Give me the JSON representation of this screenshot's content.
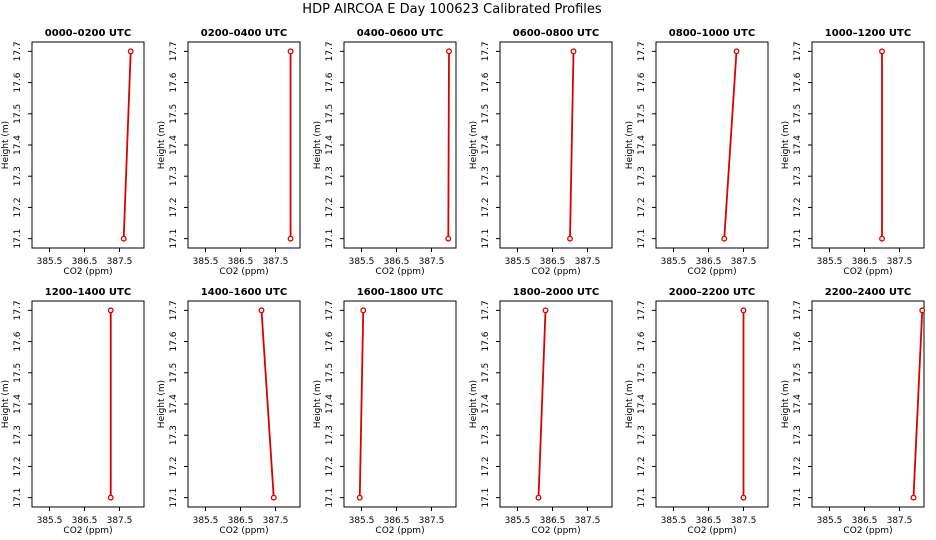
{
  "figure": {
    "title": "HDP AIRCOA E  Day 100623  Calibrated Profiles"
  },
  "colors": {
    "series": "#dd0000",
    "axes": "#000000",
    "background": "#ffffff"
  },
  "chart_data": [
    {
      "type": "line",
      "title": "0000–0200 UTC",
      "xlabel": "CO2 (ppm)",
      "ylabel": "Height (m)",
      "xlim": [
        385.0,
        388.2
      ],
      "ylim": [
        17.07,
        17.73
      ],
      "xticks": [
        385.5,
        386.5,
        387.5
      ],
      "xticklabels": [
        "385.5",
        "386.5",
        "387.5"
      ],
      "yticks": [
        17.1,
        17.2,
        17.3,
        17.4,
        17.5,
        17.6,
        17.7
      ],
      "yticklabels": [
        "17.1",
        "17.2",
        "17.3",
        "17.4",
        "17.5",
        "17.6",
        "17.7"
      ],
      "x": [
        387.62,
        387.82
      ],
      "y": [
        17.1,
        17.7
      ]
    },
    {
      "type": "line",
      "title": "0200–0400 UTC",
      "xlabel": "CO2 (ppm)",
      "ylabel": "Height (m)",
      "xlim": [
        385.0,
        388.2
      ],
      "ylim": [
        17.07,
        17.73
      ],
      "xticks": [
        385.5,
        386.5,
        387.5
      ],
      "xticklabels": [
        "385.5",
        "386.5",
        "387.5"
      ],
      "yticks": [
        17.1,
        17.2,
        17.3,
        17.4,
        17.5,
        17.6,
        17.7
      ],
      "yticklabels": [
        "17.1",
        "17.2",
        "17.3",
        "17.4",
        "17.5",
        "17.6",
        "17.7"
      ],
      "x": [
        387.93,
        387.93
      ],
      "y": [
        17.1,
        17.7
      ]
    },
    {
      "type": "line",
      "title": "0400–0600 UTC",
      "xlabel": "CO2 (ppm)",
      "ylabel": "Height (m)",
      "xlim": [
        385.0,
        388.2
      ],
      "ylim": [
        17.07,
        17.73
      ],
      "xticks": [
        385.5,
        386.5,
        387.5
      ],
      "xticklabels": [
        "385.5",
        "386.5",
        "387.5"
      ],
      "yticks": [
        17.1,
        17.2,
        17.3,
        17.4,
        17.5,
        17.6,
        17.7
      ],
      "yticklabels": [
        "17.1",
        "17.2",
        "17.3",
        "17.4",
        "17.5",
        "17.6",
        "17.7"
      ],
      "x": [
        387.98,
        388.0
      ],
      "y": [
        17.1,
        17.7
      ]
    },
    {
      "type": "line",
      "title": "0600–0800 UTC",
      "xlabel": "CO2 (ppm)",
      "ylabel": "Height (m)",
      "xlim": [
        385.0,
        388.2
      ],
      "ylim": [
        17.07,
        17.73
      ],
      "xticks": [
        385.5,
        386.5,
        387.5
      ],
      "xticklabels": [
        "385.5",
        "386.5",
        "387.5"
      ],
      "yticks": [
        17.1,
        17.2,
        17.3,
        17.4,
        17.5,
        17.6,
        17.7
      ],
      "yticklabels": [
        "17.1",
        "17.2",
        "17.3",
        "17.4",
        "17.5",
        "17.6",
        "17.7"
      ],
      "x": [
        387.0,
        387.1
      ],
      "y": [
        17.1,
        17.7
      ]
    },
    {
      "type": "line",
      "title": "0800–1000 UTC",
      "xlabel": "CO2 (ppm)",
      "ylabel": "Height (m)",
      "xlim": [
        385.0,
        388.2
      ],
      "ylim": [
        17.07,
        17.73
      ],
      "xticks": [
        385.5,
        386.5,
        387.5
      ],
      "xticklabels": [
        "385.5",
        "386.5",
        "387.5"
      ],
      "yticks": [
        17.1,
        17.2,
        17.3,
        17.4,
        17.5,
        17.6,
        17.7
      ],
      "yticklabels": [
        "17.1",
        "17.2",
        "17.3",
        "17.4",
        "17.5",
        "17.6",
        "17.7"
      ],
      "x": [
        386.95,
        387.3
      ],
      "y": [
        17.1,
        17.7
      ]
    },
    {
      "type": "line",
      "title": "1000–1200 UTC",
      "xlabel": "CO2 (ppm)",
      "ylabel": "Height (m)",
      "xlim": [
        385.0,
        388.2
      ],
      "ylim": [
        17.07,
        17.73
      ],
      "xticks": [
        385.5,
        386.5,
        387.5
      ],
      "xticklabels": [
        "385.5",
        "386.5",
        "387.5"
      ],
      "yticks": [
        17.1,
        17.2,
        17.3,
        17.4,
        17.5,
        17.6,
        17.7
      ],
      "yticklabels": [
        "17.1",
        "17.2",
        "17.3",
        "17.4",
        "17.5",
        "17.6",
        "17.7"
      ],
      "x": [
        387.0,
        387.0
      ],
      "y": [
        17.1,
        17.7
      ]
    },
    {
      "type": "line",
      "title": "1200–1400 UTC",
      "xlabel": "CO2 (ppm)",
      "ylabel": "Height (m)",
      "xlim": [
        385.0,
        388.2
      ],
      "ylim": [
        17.07,
        17.73
      ],
      "xticks": [
        385.5,
        386.5,
        387.5
      ],
      "xticklabels": [
        "385.5",
        "386.5",
        "387.5"
      ],
      "yticks": [
        17.1,
        17.2,
        17.3,
        17.4,
        17.5,
        17.6,
        17.7
      ],
      "yticklabels": [
        "17.1",
        "17.2",
        "17.3",
        "17.4",
        "17.5",
        "17.6",
        "17.7"
      ],
      "x": [
        387.25,
        387.25
      ],
      "y": [
        17.1,
        17.7
      ]
    },
    {
      "type": "line",
      "title": "1400–1600 UTC",
      "xlabel": "CO2 (ppm)",
      "ylabel": "Height (m)",
      "xlim": [
        385.0,
        388.2
      ],
      "ylim": [
        17.07,
        17.73
      ],
      "xticks": [
        385.5,
        386.5,
        387.5
      ],
      "xticklabels": [
        "385.5",
        "386.5",
        "387.5"
      ],
      "yticks": [
        17.1,
        17.2,
        17.3,
        17.4,
        17.5,
        17.6,
        17.7
      ],
      "yticklabels": [
        "17.1",
        "17.2",
        "17.3",
        "17.4",
        "17.5",
        "17.6",
        "17.7"
      ],
      "x": [
        387.45,
        387.1
      ],
      "y": [
        17.1,
        17.7
      ]
    },
    {
      "type": "line",
      "title": "1600–1800 UTC",
      "xlabel": "CO2 (ppm)",
      "ylabel": "Height (m)",
      "xlim": [
        385.0,
        388.2
      ],
      "ylim": [
        17.07,
        17.73
      ],
      "xticks": [
        385.5,
        386.5,
        387.5
      ],
      "xticklabels": [
        "385.5",
        "386.5",
        "387.5"
      ],
      "yticks": [
        17.1,
        17.2,
        17.3,
        17.4,
        17.5,
        17.6,
        17.7
      ],
      "yticklabels": [
        "17.1",
        "17.2",
        "17.3",
        "17.4",
        "17.5",
        "17.6",
        "17.7"
      ],
      "x": [
        385.45,
        385.55
      ],
      "y": [
        17.1,
        17.7
      ]
    },
    {
      "type": "line",
      "title": "1800–2000 UTC",
      "xlabel": "CO2 (ppm)",
      "ylabel": "Height (m)",
      "xlim": [
        385.0,
        388.2
      ],
      "ylim": [
        17.07,
        17.73
      ],
      "xticks": [
        385.5,
        386.5,
        387.5
      ],
      "xticklabels": [
        "385.5",
        "386.5",
        "387.5"
      ],
      "yticks": [
        17.1,
        17.2,
        17.3,
        17.4,
        17.5,
        17.6,
        17.7
      ],
      "yticklabels": [
        "17.1",
        "17.2",
        "17.3",
        "17.4",
        "17.5",
        "17.6",
        "17.7"
      ],
      "x": [
        386.1,
        386.3
      ],
      "y": [
        17.1,
        17.7
      ]
    },
    {
      "type": "line",
      "title": "2000–2200 UTC",
      "xlabel": "CO2 (ppm)",
      "ylabel": "Height (m)",
      "xlim": [
        385.0,
        388.2
      ],
      "ylim": [
        17.07,
        17.73
      ],
      "xticks": [
        385.5,
        386.5,
        387.5
      ],
      "xticklabels": [
        "385.5",
        "386.5",
        "387.5"
      ],
      "yticks": [
        17.1,
        17.2,
        17.3,
        17.4,
        17.5,
        17.6,
        17.7
      ],
      "yticklabels": [
        "17.1",
        "17.2",
        "17.3",
        "17.4",
        "17.5",
        "17.6",
        "17.7"
      ],
      "x": [
        387.5,
        387.5
      ],
      "y": [
        17.1,
        17.7
      ]
    },
    {
      "type": "line",
      "title": "2200–2400 UTC",
      "xlabel": "CO2 (ppm)",
      "ylabel": "Height (m)",
      "xlim": [
        385.0,
        388.2
      ],
      "ylim": [
        17.07,
        17.73
      ],
      "xticks": [
        385.5,
        386.5,
        387.5
      ],
      "xticklabels": [
        "385.5",
        "386.5",
        "387.5"
      ],
      "yticks": [
        17.1,
        17.2,
        17.3,
        17.4,
        17.5,
        17.6,
        17.7
      ],
      "yticklabels": [
        "17.1",
        "17.2",
        "17.3",
        "17.4",
        "17.5",
        "17.6",
        "17.7"
      ],
      "x": [
        387.9,
        388.15
      ],
      "y": [
        17.1,
        17.7
      ]
    }
  ]
}
